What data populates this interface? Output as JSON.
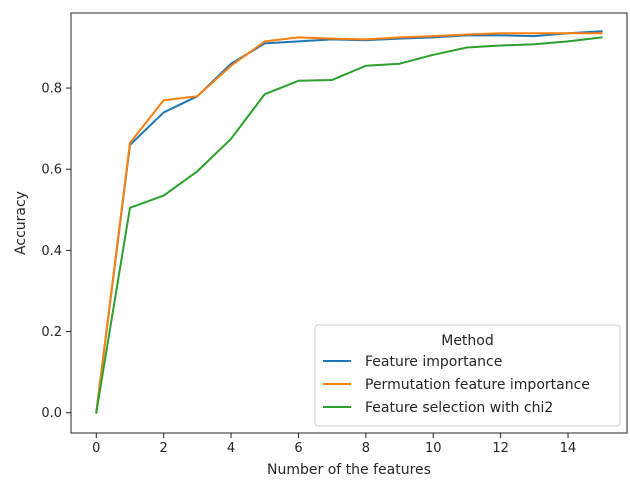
{
  "chart_data": {
    "type": "line",
    "title": "",
    "xlabel": "Number of the features",
    "ylabel": "Accuracy",
    "xlim": [
      -0.75,
      15.75
    ],
    "ylim": [
      -0.05,
      0.985
    ],
    "xticks": [
      0,
      2,
      4,
      6,
      8,
      10,
      12,
      14
    ],
    "yticks": [
      0.0,
      0.2,
      0.4,
      0.6,
      0.8
    ],
    "xtick_labels": [
      "0",
      "2",
      "4",
      "6",
      "8",
      "10",
      "12",
      "14"
    ],
    "ytick_labels": [
      "0.0",
      "0.2",
      "0.4",
      "0.6",
      "0.8"
    ],
    "grid": false,
    "legend": {
      "title": "Method",
      "position": "lower right"
    },
    "x": [
      0,
      1,
      2,
      3,
      4,
      5,
      6,
      7,
      8,
      9,
      10,
      11,
      12,
      13,
      14,
      15
    ],
    "series": [
      {
        "name": "Feature importance",
        "color": "#1f77b4",
        "values": [
          0.0,
          0.66,
          0.74,
          0.78,
          0.86,
          0.91,
          0.915,
          0.92,
          0.918,
          0.922,
          0.925,
          0.93,
          0.93,
          0.928,
          0.935,
          0.94
        ]
      },
      {
        "name": "Permutation feature importance",
        "color": "#ff7f0e",
        "values": [
          0.0,
          0.665,
          0.77,
          0.78,
          0.855,
          0.915,
          0.925,
          0.922,
          0.92,
          0.925,
          0.928,
          0.932,
          0.935,
          0.935,
          0.935,
          0.935
        ]
      },
      {
        "name": "Feature selection with chi2",
        "color": "#2ca02c",
        "values": [
          0.0,
          0.505,
          0.535,
          0.595,
          0.675,
          0.785,
          0.818,
          0.82,
          0.855,
          0.86,
          0.882,
          0.9,
          0.905,
          0.908,
          0.915,
          0.925
        ]
      }
    ]
  }
}
